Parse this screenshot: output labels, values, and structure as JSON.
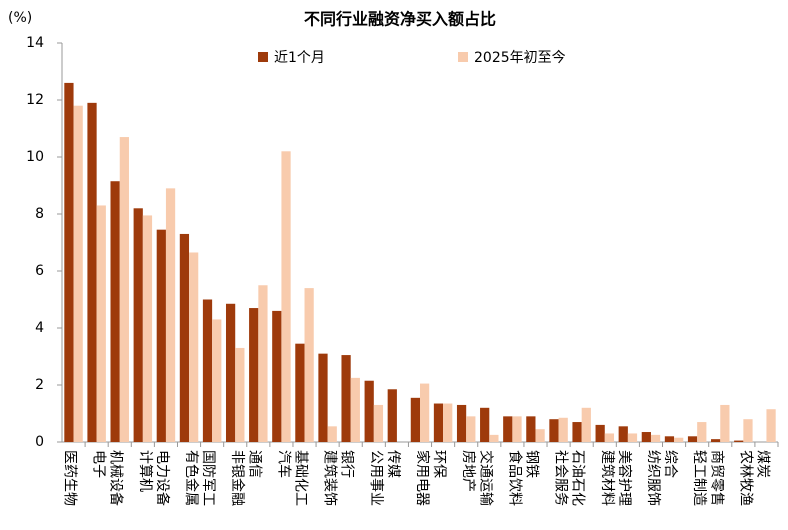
{
  "chart_data": {
    "type": "bar",
    "title": "不同行业融资净买入额占比",
    "y_label": "(%)",
    "categories": [
      "医药生物",
      "电子",
      "机械设备",
      "计算机",
      "电力设备",
      "有色金属",
      "国防军工",
      "非银金融",
      "通信",
      "汽车",
      "基础化工",
      "建筑装饰",
      "银行",
      "公用事业",
      "传媒",
      "家用电器",
      "环保",
      "房地产",
      "交通运输",
      "食品饮料",
      "钢铁",
      "社会服务",
      "石油石化",
      "建筑材料",
      "美容护理",
      "纺织服饰",
      "综合",
      "轻工制造",
      "商贸零售",
      "农林牧渔",
      "煤炭"
    ],
    "series": [
      {
        "name": "近1个月",
        "color": "#9e3a0b",
        "values": [
          12.6,
          11.9,
          9.15,
          8.2,
          7.45,
          7.3,
          5.0,
          4.85,
          4.7,
          4.6,
          3.45,
          3.1,
          3.05,
          2.15,
          1.85,
          1.55,
          1.35,
          1.3,
          1.2,
          0.9,
          0.9,
          0.8,
          0.7,
          0.6,
          0.55,
          0.35,
          0.2,
          0.2,
          0.1,
          0.05,
          0.0
        ]
      },
      {
        "name": "2025年初至今",
        "color": "#f8cbad",
        "values": [
          11.8,
          8.3,
          10.7,
          7.95,
          8.9,
          6.65,
          4.3,
          3.3,
          5.5,
          10.2,
          5.4,
          0.55,
          2.25,
          1.3,
          0.0,
          2.05,
          1.35,
          0.9,
          0.25,
          0.9,
          0.45,
          0.85,
          1.2,
          0.3,
          0.3,
          0.25,
          0.15,
          0.7,
          1.3,
          0.8,
          1.15
        ]
      }
    ],
    "ylim": [
      0,
      14
    ],
    "yticks": [
      0,
      2,
      4,
      6,
      8,
      10,
      12,
      14
    ],
    "grid": false
  }
}
